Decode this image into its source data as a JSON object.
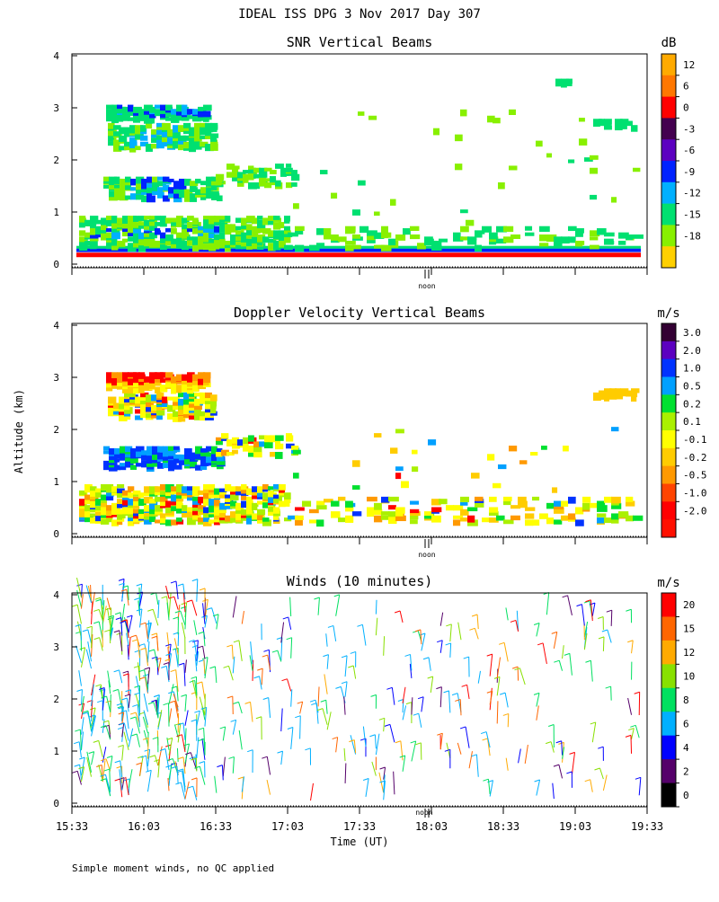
{
  "header": {
    "title": "IDEAL ISS DPG   3 Nov 2017 Day 307"
  },
  "y_axis": {
    "label": "Altitude (km)",
    "ticks": [
      0,
      1,
      2,
      3,
      4
    ]
  },
  "x_axis": {
    "label": "Time (UT)",
    "tick_labels": [
      "15:33",
      "16:03",
      "16:33",
      "17:03",
      "17:33",
      "18:03",
      "18:33",
      "19:03",
      "19:33"
    ],
    "noon_label": "noon",
    "noon_marker": "II"
  },
  "footer": {
    "note": "Simple moment winds, no QC applied"
  },
  "chart_data": [
    {
      "type": "heatmap",
      "title": "SNR Vertical Beams",
      "ylabel": "Altitude (km)",
      "ylim": [
        0,
        4
      ],
      "colorbar": {
        "unit": "dB",
        "labels": [
          "12",
          "6",
          "0",
          "-3",
          "-6",
          "-9",
          "-12",
          "-15",
          "-18"
        ],
        "colors": [
          "#ffaa00",
          "#ff7700",
          "#ff0000",
          "#44004f",
          "#5c00c0",
          "#0022ff",
          "#00b0ff",
          "#00e070",
          "#88f000",
          "#ffd000"
        ]
      },
      "colors": {
        "layer_low": "#88f000",
        "layer_mid": "#00e070",
        "layer_strong": "#00b0ff",
        "layer_core": "#0022ff"
      }
    },
    {
      "type": "heatmap",
      "title": "Doppler Velocity Vertical Beams",
      "ylabel": "Altitude (km)",
      "ylim": [
        0,
        4
      ],
      "colorbar": {
        "unit": "m/s",
        "labels": [
          "3.0",
          "2.0",
          "1.0",
          "0.5",
          "0.2",
          "0.1",
          "-0.1",
          "-0.2",
          "-0.5",
          "-1.0",
          "-2.0"
        ],
        "colors": [
          "#330033",
          "#5c00c0",
          "#0033ff",
          "#00a0ff",
          "#00e030",
          "#aaf000",
          "#ffff00",
          "#ffcc00",
          "#ff9900",
          "#ff4400",
          "#ff0000",
          "#ff1000"
        ]
      }
    },
    {
      "type": "scatter",
      "title": "Winds (10 minutes)",
      "ylabel": "Altitude (km)",
      "ylim": [
        0,
        4
      ],
      "colorbar": {
        "unit": "m/s",
        "labels": [
          "20",
          "15",
          "12",
          "10",
          "8",
          "6",
          "4",
          "2",
          "0"
        ],
        "colors": [
          "#ff0000",
          "#ff6600",
          "#ffaa00",
          "#88e000",
          "#00e060",
          "#00b0ff",
          "#0000ff",
          "#55006a",
          "#000000"
        ]
      }
    }
  ]
}
